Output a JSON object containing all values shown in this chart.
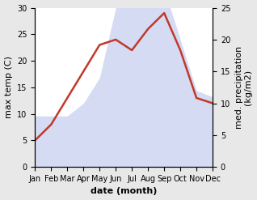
{
  "months": [
    "Jan",
    "Feb",
    "Mar",
    "Apr",
    "May",
    "Jun",
    "Jul",
    "Aug",
    "Sep",
    "Oct",
    "Nov",
    "Dec"
  ],
  "temp_C": [
    5,
    8,
    13,
    18,
    23,
    24,
    22,
    26,
    29,
    22,
    13,
    12
  ],
  "precip_mm": [
    8,
    8,
    8,
    10,
    14,
    25,
    26,
    28,
    28,
    20,
    12,
    11
  ],
  "precip_color": "#c0392b",
  "fill_color": "#c8d0f0",
  "fill_alpha": 0.75,
  "temp_ylim": [
    0,
    30
  ],
  "precip_ylim": [
    0,
    25
  ],
  "temp_yticks": [
    0,
    5,
    10,
    15,
    20,
    25,
    30
  ],
  "precip_yticks": [
    0,
    5,
    10,
    15,
    20,
    25
  ],
  "ylabel_left": "max temp (C)",
  "ylabel_right": "med. precipitation\n(kg/m2)",
  "xlabel": "date (month)",
  "line_color": "#c0392b",
  "line_width": 1.8,
  "tick_fontsize": 7,
  "label_fontsize": 8,
  "xlabel_fontsize": 8,
  "fig_facecolor": "#e8e8e8",
  "axes_facecolor": "#ffffff"
}
